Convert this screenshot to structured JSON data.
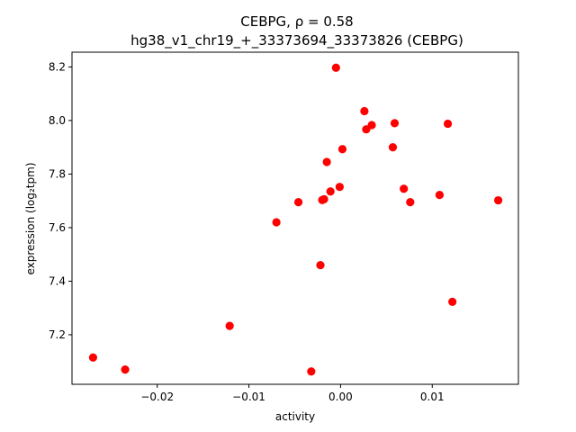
{
  "chart_data": {
    "type": "scatter",
    "title_line1": "CEBPG, ρ = 0.58",
    "title_line2": "hg38_v1_chr19_+_33373694_33373826 (CEBPG)",
    "xlabel": "activity",
    "ylabel": "expression (log₂tpm)",
    "xlim": [
      -0.0293,
      0.0194
    ],
    "ylim": [
      7.015,
      8.255
    ],
    "xticks": [
      -0.02,
      -0.01,
      0.0,
      0.01
    ],
    "xtick_labels": [
      "−0.02",
      "−0.01",
      "0.00",
      "0.01"
    ],
    "yticks": [
      7.2,
      7.4,
      7.6,
      7.8,
      8.0,
      8.2
    ],
    "ytick_labels": [
      "7.2",
      "7.4",
      "7.6",
      "7.8",
      "8.0",
      "8.2"
    ],
    "marker_color": "#ff0000",
    "grid": false,
    "points": [
      {
        "x": -0.027,
        "y": 7.115
      },
      {
        "x": -0.0235,
        "y": 7.07
      },
      {
        "x": -0.0121,
        "y": 7.233
      },
      {
        "x": -0.007,
        "y": 7.62
      },
      {
        "x": -0.0046,
        "y": 7.695
      },
      {
        "x": -0.0032,
        "y": 7.063
      },
      {
        "x": -0.0022,
        "y": 7.46
      },
      {
        "x": -0.002,
        "y": 7.703
      },
      {
        "x": -0.0018,
        "y": 7.706
      },
      {
        "x": -0.0015,
        "y": 7.845
      },
      {
        "x": -0.0011,
        "y": 7.735
      },
      {
        "x": -0.0005,
        "y": 8.197
      },
      {
        "x": -0.0001,
        "y": 7.752
      },
      {
        "x": 0.0002,
        "y": 7.893
      },
      {
        "x": 0.0026,
        "y": 8.035
      },
      {
        "x": 0.0028,
        "y": 7.967
      },
      {
        "x": 0.0034,
        "y": 7.983
      },
      {
        "x": 0.0057,
        "y": 7.9
      },
      {
        "x": 0.0059,
        "y": 7.99
      },
      {
        "x": 0.0069,
        "y": 7.745
      },
      {
        "x": 0.0076,
        "y": 7.695
      },
      {
        "x": 0.0108,
        "y": 7.722
      },
      {
        "x": 0.0117,
        "y": 7.988
      },
      {
        "x": 0.0122,
        "y": 7.323
      },
      {
        "x": 0.0172,
        "y": 7.702
      }
    ]
  }
}
